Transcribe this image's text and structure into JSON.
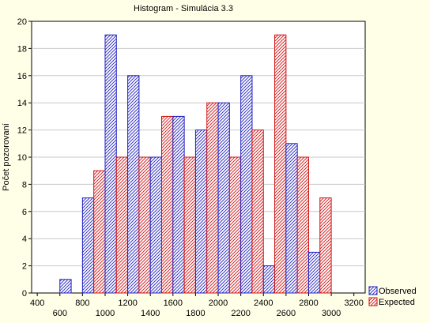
{
  "chart_data": {
    "type": "bar",
    "title": "Histogram - Simulácia 3.3",
    "xlabel": "",
    "ylabel": "Počet pozorovaní",
    "x_ticks_upper": [
      "400",
      "800",
      "1200",
      "1600",
      "2000",
      "2400",
      "2800",
      "3200"
    ],
    "x_ticks_lower": [
      "600",
      "1000",
      "1400",
      "1800",
      "2200",
      "2600",
      "3000"
    ],
    "xlim": [
      350,
      3300
    ],
    "ylim": [
      0,
      20
    ],
    "y_ticks": [
      "0",
      "2",
      "4",
      "6",
      "8",
      "10",
      "12",
      "14",
      "16",
      "18",
      "20"
    ],
    "bin_width": 200,
    "grid": true,
    "legend_position": "bottom-right",
    "bins": [
      500,
      700,
      900,
      1100,
      1300,
      1500,
      1700,
      1900,
      2100,
      2300,
      2500,
      2700,
      2900
    ],
    "series": [
      {
        "name": "Observed",
        "color": "#2020c0",
        "values": [
          0,
          1,
          7,
          19,
          16,
          10,
          13,
          12,
          14,
          16,
          2,
          11,
          3
        ]
      },
      {
        "name": "Expected",
        "color": "#d01010",
        "values": [
          0,
          0,
          9,
          10,
          10,
          13,
          10,
          14,
          10,
          12,
          19,
          10,
          7
        ]
      }
    ]
  }
}
